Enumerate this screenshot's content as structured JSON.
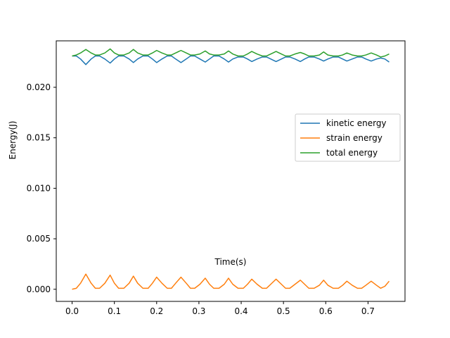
{
  "chart_data": {
    "type": "line",
    "title": "",
    "xlabel": "Time(s)",
    "ylabel": "Energy(J)",
    "xlim": [
      -0.0375,
      0.7875
    ],
    "ylim": [
      -0.0012,
      0.0246
    ],
    "xticks": [
      0.0,
      0.1,
      0.2,
      0.3,
      0.4,
      0.5,
      0.6,
      0.7
    ],
    "xtick_labels": [
      "0.0",
      "0.1",
      "0.2",
      "0.3",
      "0.4",
      "0.5",
      "0.6",
      "0.7"
    ],
    "yticks": [
      0.0,
      0.005,
      0.01,
      0.015,
      0.02
    ],
    "ytick_labels": [
      "0.000",
      "0.005",
      "0.010",
      "0.015",
      "0.020"
    ],
    "grid": false,
    "legend_position": "center-right",
    "x": [
      0.0,
      0.01,
      0.02,
      0.0325,
      0.045,
      0.055,
      0.065,
      0.0775,
      0.09,
      0.1,
      0.11,
      0.1225,
      0.135,
      0.145,
      0.155,
      0.1675,
      0.18,
      0.19,
      0.2,
      0.2125,
      0.225,
      0.235,
      0.245,
      0.2575,
      0.27,
      0.28,
      0.29,
      0.3025,
      0.315,
      0.325,
      0.335,
      0.3475,
      0.36,
      0.37,
      0.38,
      0.3925,
      0.405,
      0.415,
      0.425,
      0.4375,
      0.45,
      0.46,
      0.47,
      0.4825,
      0.495,
      0.505,
      0.515,
      0.5275,
      0.54,
      0.55,
      0.56,
      0.5725,
      0.585,
      0.595,
      0.605,
      0.6175,
      0.63,
      0.64,
      0.65,
      0.6625,
      0.675,
      0.685,
      0.695,
      0.7075,
      0.72,
      0.73,
      0.74,
      0.75
    ],
    "series": [
      {
        "name": "kinetic energy",
        "color": "#1f77b4",
        "values": [
          0.0231,
          0.0231,
          0.0228,
          0.02225,
          0.0228,
          0.0231,
          0.0231,
          0.0228,
          0.0224,
          0.0228,
          0.0231,
          0.0231,
          0.0228,
          0.02245,
          0.0228,
          0.0231,
          0.0231,
          0.0228,
          0.02245,
          0.0228,
          0.0231,
          0.0231,
          0.0228,
          0.02245,
          0.0228,
          0.0231,
          0.0231,
          0.0228,
          0.0225,
          0.0228,
          0.0231,
          0.0231,
          0.0228,
          0.0225,
          0.0228,
          0.023,
          0.023,
          0.0228,
          0.02255,
          0.0228,
          0.023,
          0.023,
          0.0228,
          0.02255,
          0.0228,
          0.023,
          0.023,
          0.0228,
          0.02255,
          0.0228,
          0.023,
          0.023,
          0.0228,
          0.0226,
          0.0228,
          0.023,
          0.023,
          0.0228,
          0.0226,
          0.0228,
          0.023,
          0.023,
          0.0228,
          0.0226,
          0.0228,
          0.0229,
          0.0228,
          0.0225
        ]
      },
      {
        "name": "strain energy",
        "color": "#ff7f0e",
        "values": [
          0.0,
          0.0001,
          0.0006,
          0.0015,
          0.0006,
          0.0001,
          0.0001,
          0.0006,
          0.0014,
          0.0006,
          0.0001,
          0.0001,
          0.0006,
          0.0013,
          0.0006,
          0.0001,
          0.0001,
          0.0006,
          0.0012,
          0.0006,
          0.0001,
          0.0001,
          0.0006,
          0.0012,
          0.0006,
          0.0001,
          0.0001,
          0.0005,
          0.0011,
          0.0005,
          0.0001,
          0.0001,
          0.0005,
          0.0011,
          0.0005,
          0.0001,
          0.0001,
          0.0005,
          0.001,
          0.0005,
          0.0001,
          0.0001,
          0.0005,
          0.001,
          0.0005,
          0.0001,
          0.0001,
          0.0005,
          0.0009,
          0.0005,
          0.0001,
          0.0001,
          0.0004,
          0.0009,
          0.0004,
          0.0001,
          0.0001,
          0.0004,
          0.0008,
          0.0004,
          0.0001,
          0.0001,
          0.0004,
          0.0008,
          0.0004,
          0.0001,
          0.0003,
          0.0008
        ]
      },
      {
        "name": "total energy",
        "color": "#2ca02c",
        "values": [
          0.0231,
          0.0232,
          0.0234,
          0.02375,
          0.0234,
          0.0232,
          0.0232,
          0.0234,
          0.0238,
          0.0234,
          0.0232,
          0.0232,
          0.0234,
          0.02375,
          0.0234,
          0.0232,
          0.0232,
          0.0234,
          0.02365,
          0.0234,
          0.0232,
          0.0232,
          0.0234,
          0.02365,
          0.0234,
          0.0232,
          0.0232,
          0.0233,
          0.0236,
          0.0233,
          0.0232,
          0.0232,
          0.0233,
          0.0236,
          0.0233,
          0.0231,
          0.0231,
          0.0233,
          0.02355,
          0.0233,
          0.0231,
          0.0231,
          0.0233,
          0.02355,
          0.0233,
          0.0231,
          0.0231,
          0.0233,
          0.02345,
          0.0233,
          0.0231,
          0.0231,
          0.0232,
          0.0235,
          0.0232,
          0.0231,
          0.0231,
          0.0232,
          0.0234,
          0.0232,
          0.0231,
          0.0231,
          0.0232,
          0.0234,
          0.0232,
          0.023,
          0.0231,
          0.0233
        ]
      }
    ]
  }
}
